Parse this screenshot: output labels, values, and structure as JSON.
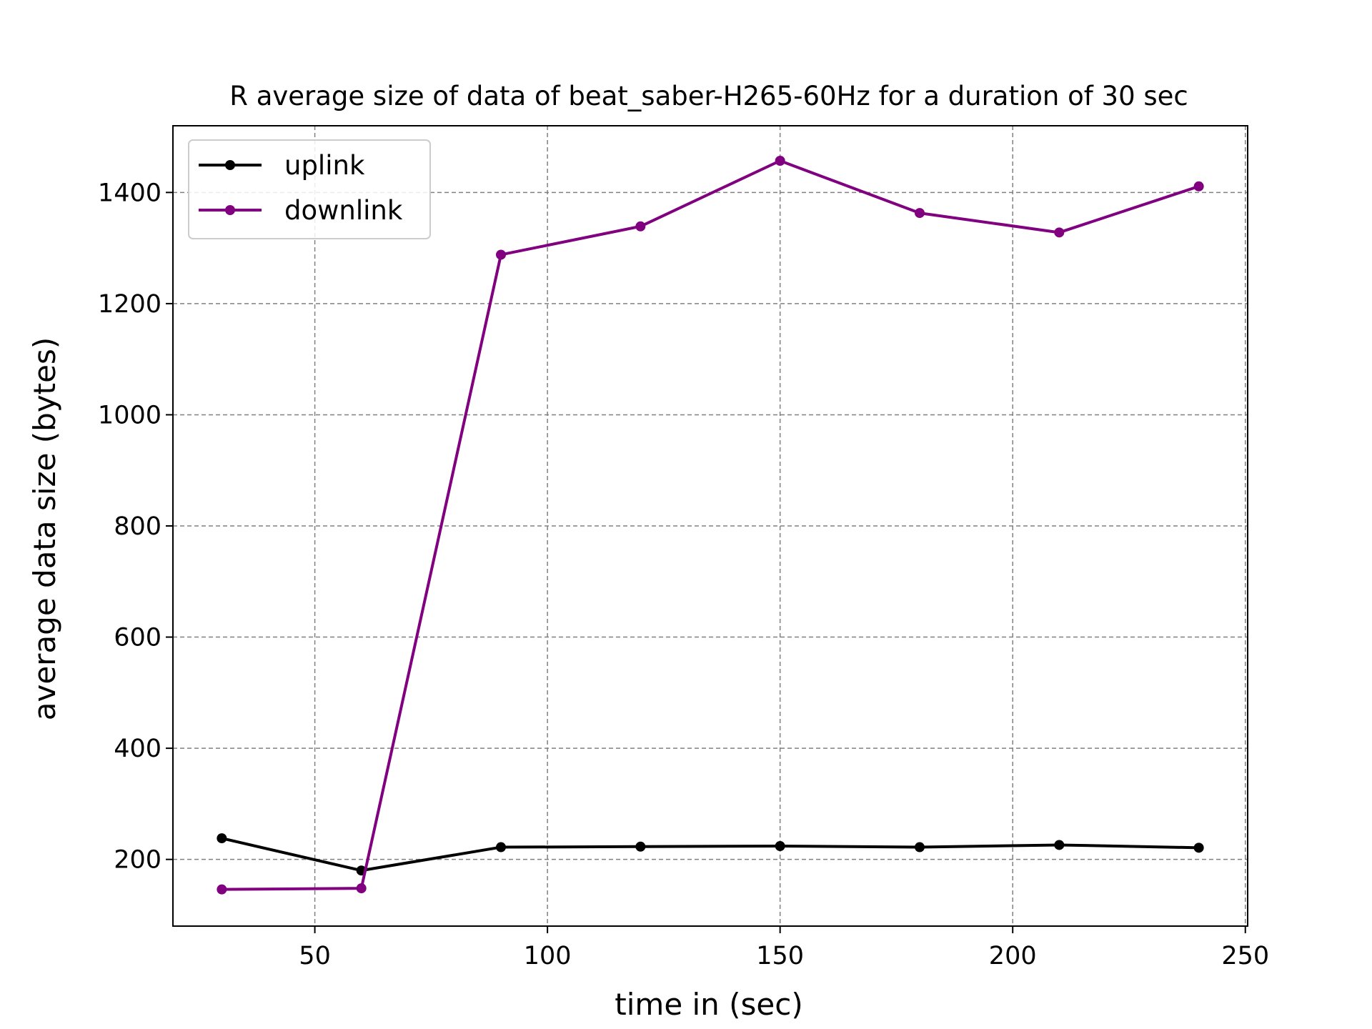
{
  "chart_data": {
    "type": "line",
    "title": "R average size of data of beat_saber-H265-60Hz for a duration of 30 sec",
    "xlabel": "time in (sec)",
    "ylabel": "average data size (bytes)",
    "xlim": [
      19.5,
      250.5
    ],
    "ylim": [
      80,
      1520
    ],
    "xticks": [
      50,
      100,
      150,
      200,
      250
    ],
    "yticks": [
      200,
      400,
      600,
      800,
      1000,
      1200,
      1400
    ],
    "grid": true,
    "legend_position": "upper-left",
    "x": [
      30,
      60,
      90,
      120,
      150,
      180,
      210,
      240
    ],
    "series": [
      {
        "name": "uplink",
        "color": "#000000",
        "values": [
          238,
          180,
          222,
          223,
          224,
          222,
          226,
          221
        ]
      },
      {
        "name": "downlink",
        "color": "#800080",
        "values": [
          146,
          148,
          1288,
          1339,
          1457,
          1363,
          1328,
          1411
        ]
      }
    ]
  }
}
